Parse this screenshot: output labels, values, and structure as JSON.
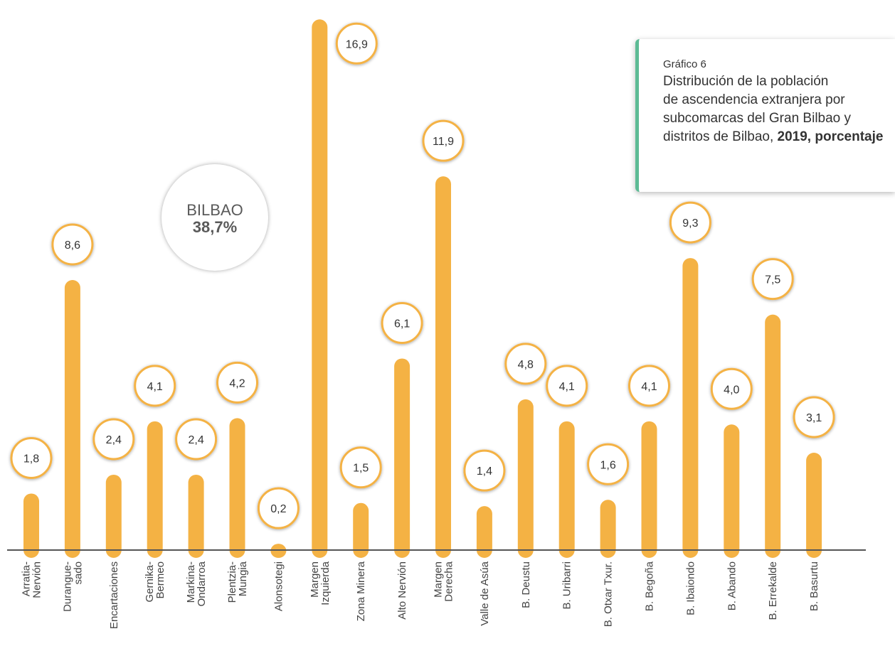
{
  "chart_data": {
    "type": "bar",
    "categories": [
      "Arratia-\nNervión",
      "Durangue-\nsado",
      "Encartaciones",
      "Gernika-\nBermeo",
      "Markina-\nOndarroa",
      "Plentzia-\nMungia",
      "Alonsotegi",
      "Margen\nIzquierda",
      "Zona Minera",
      "Alto Nervión",
      "Margen\nDerecha",
      "Valle de Asúa",
      "B. Deustu",
      "B. Uribarri",
      "B. Otxar Txur.",
      "B. Begoña",
      "B. Ibaiondo",
      "B. Abando",
      "B. Errekalde",
      "B. Basurtu"
    ],
    "values": [
      1.8,
      8.6,
      2.4,
      4.1,
      2.4,
      4.2,
      0.2,
      16.9,
      1.5,
      6.1,
      11.9,
      1.4,
      4.8,
      4.1,
      1.6,
      4.1,
      9.3,
      4.0,
      7.5,
      3.1
    ],
    "value_labels": [
      "1,8",
      "8,6",
      "2,4",
      "4,1",
      "2,4",
      "4,2",
      "0,2",
      "16,9",
      "1,5",
      "6,1",
      "11,9",
      "1,4",
      "4,8",
      "4,1",
      "1,6",
      "4,1",
      "9,3",
      "4,0",
      "7,5",
      "3,1"
    ],
    "ylim": [
      0,
      17.2
    ],
    "grid": false,
    "bar_color": "#f4b244",
    "bubble_border_color": "#f4b244",
    "axis_color": "#555555"
  },
  "title_card": {
    "label": "Gráfico 6",
    "line1": "Distribución de la población",
    "line2": "de ascendencia extranjera por",
    "line3": "subcomarcas del Gran Bilbao y",
    "line4_text": "distritos de Bilbao, ",
    "line4_bold": "2019, porcentaje",
    "accent_color": "#5dbb95"
  },
  "bilbao_callout": {
    "name": "BILBAO",
    "percent": "38,7%"
  }
}
